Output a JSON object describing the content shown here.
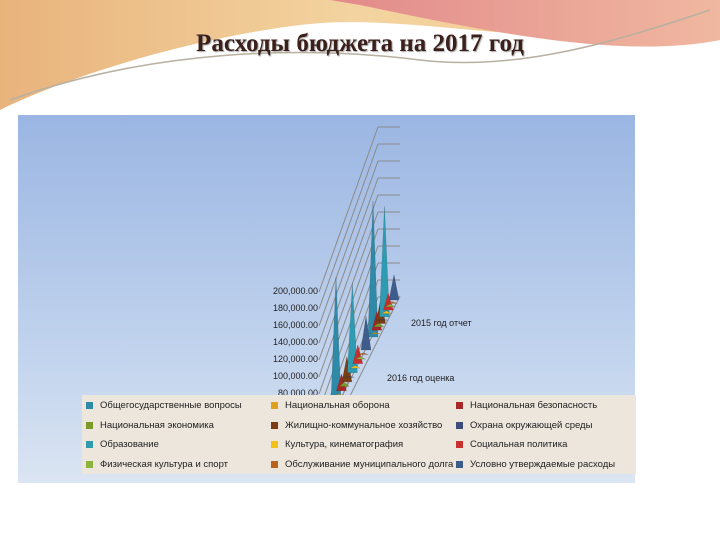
{
  "title": "Расходы бюджета на 2017 год",
  "chart_data": {
    "type": "bar",
    "style": "3d-cone",
    "categories": [
      "2016 год оценка",
      "2015 год отчет"
    ],
    "y_ticks": [
      "80,000.00",
      "100,000.00",
      "120,000.00",
      "140,000.00",
      "160,000.00",
      "180,000.00",
      "200,000.00"
    ],
    "ylim": [
      0,
      200000
    ],
    "grid": true,
    "legend_placement": "bottom",
    "series": [
      {
        "name": "Общегосударственные вопросы",
        "color": "#2e8aa6",
        "values": [
          145000,
          160000
        ]
      },
      {
        "name": "Национальная оборона",
        "color": "#e0a21e",
        "values": [
          1500,
          1500
        ]
      },
      {
        "name": "Национальная безопасность",
        "color": "#a8282a",
        "values": [
          20000,
          22000
        ]
      },
      {
        "name": "Национальная экономика",
        "color": "#7a9a2a",
        "values": [
          5000,
          5000
        ]
      },
      {
        "name": "Жилищно-коммунальное хозяйство",
        "color": "#7a3e12",
        "values": [
          30000,
          28000
        ]
      },
      {
        "name": "Охрана окружающей среды",
        "color": "#3c4c7c",
        "values": [
          1000,
          1000
        ]
      },
      {
        "name": "Образование",
        "color": "#2f9bb0",
        "values": [
          105000,
          130000
        ]
      },
      {
        "name": "Культура, кинематография",
        "color": "#f2c018",
        "values": [
          3000,
          3000
        ]
      },
      {
        "name": "Социальная политика",
        "color": "#c83030",
        "values": [
          22000,
          20000
        ]
      },
      {
        "name": "Физическая культура и спорт",
        "color": "#8cb43a",
        "values": [
          3000,
          3000
        ]
      },
      {
        "name": "Обслуживание муниципального долга",
        "color": "#b8641e",
        "values": [
          2000,
          2000
        ]
      },
      {
        "name": "Условно утверждаемые расходы",
        "color": "#3e5c8c",
        "values": [
          40000,
          30000
        ]
      }
    ]
  }
}
